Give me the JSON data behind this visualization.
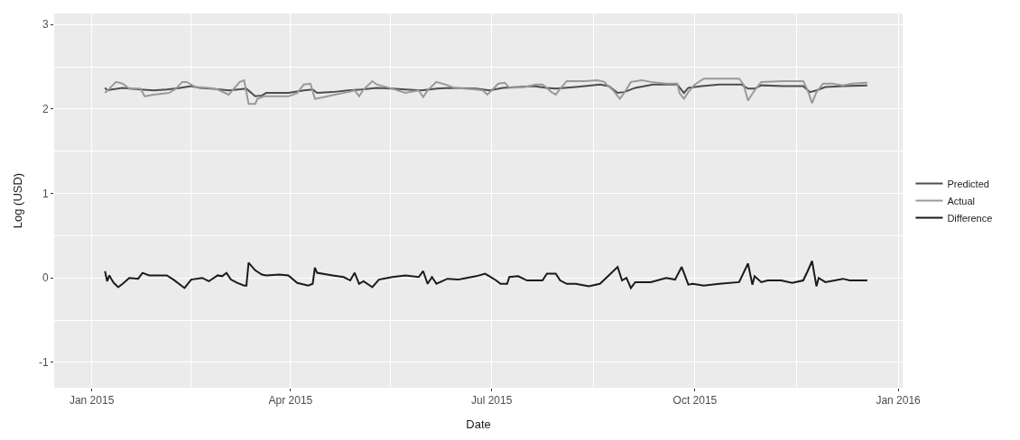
{
  "chart_data": {
    "type": "line",
    "xlabel": "Date",
    "ylabel": "Log (USD)",
    "xlim": [
      "2014-12-15",
      "2016-01-03"
    ],
    "ylim": [
      -1.3,
      3.13
    ],
    "xticks": [
      {
        "value": "2015-01-01",
        "label": "Jan 2015"
      },
      {
        "value": "2015-04-01",
        "label": "Apr 2015"
      },
      {
        "value": "2015-07-01",
        "label": "Jul 2015"
      },
      {
        "value": "2015-10-01",
        "label": "Oct 2015"
      },
      {
        "value": "2016-01-01",
        "label": "Jan 2016"
      }
    ],
    "yticks": [
      -1,
      0,
      1,
      2,
      3
    ],
    "grid": true,
    "legend": "right",
    "line_style": "solid",
    "marker": "none",
    "series": [
      {
        "name": "Predicted",
        "color": "#4d4d4d",
        "x": [
          "2015-01-07",
          "2015-01-08",
          "2015-01-10",
          "2015-01-15",
          "2015-01-23",
          "2015-01-29",
          "2015-02-04",
          "2015-02-10",
          "2015-02-15",
          "2015-02-19",
          "2015-02-24",
          "2015-03-04",
          "2015-03-12",
          "2015-03-16",
          "2015-03-19",
          "2015-03-21",
          "2015-03-31",
          "2015-04-07",
          "2015-04-11",
          "2015-04-13",
          "2015-04-20",
          "2015-04-27",
          "2015-05-03",
          "2015-05-10",
          "2015-05-17",
          "2015-05-23",
          "2015-05-30",
          "2015-06-03",
          "2015-06-06",
          "2015-06-12",
          "2015-06-24",
          "2015-06-27",
          "2015-06-30",
          "2015-07-06",
          "2015-07-20",
          "2015-07-26",
          "2015-07-30",
          "2015-08-08",
          "2015-08-19",
          "2015-08-23",
          "2015-08-27",
          "2015-08-30",
          "2015-09-04",
          "2015-09-12",
          "2015-09-23",
          "2015-09-26",
          "2015-09-28",
          "2015-10-04",
          "2015-10-12",
          "2015-10-22",
          "2015-10-25",
          "2015-10-28",
          "2015-10-31",
          "2015-11-10",
          "2015-11-19",
          "2015-11-22",
          "2015-11-25",
          "2015-11-29",
          "2015-12-07",
          "2015-12-18"
        ],
        "values": [
          2.25,
          2.22,
          2.23,
          2.25,
          2.23,
          2.22,
          2.23,
          2.25,
          2.27,
          2.25,
          2.24,
          2.22,
          2.24,
          2.15,
          2.16,
          2.19,
          2.19,
          2.22,
          2.23,
          2.19,
          2.2,
          2.22,
          2.23,
          2.25,
          2.24,
          2.23,
          2.22,
          2.23,
          2.24,
          2.25,
          2.24,
          2.23,
          2.22,
          2.25,
          2.27,
          2.25,
          2.24,
          2.26,
          2.29,
          2.27,
          2.19,
          2.2,
          2.25,
          2.29,
          2.29,
          2.19,
          2.25,
          2.27,
          2.29,
          2.29,
          2.24,
          2.24,
          2.28,
          2.27,
          2.27,
          2.2,
          2.22,
          2.26,
          2.27,
          2.28
        ]
      },
      {
        "name": "Actual",
        "color": "#999999",
        "x": [
          "2015-01-07",
          "2015-01-09",
          "2015-01-12",
          "2015-01-15",
          "2015-01-18",
          "2015-01-23",
          "2015-01-25",
          "2015-01-29",
          "2015-02-05",
          "2015-02-08",
          "2015-02-11",
          "2015-02-13",
          "2015-02-17",
          "2015-02-23",
          "2015-02-27",
          "2015-03-04",
          "2015-03-09",
          "2015-03-11",
          "2015-03-13",
          "2015-03-16",
          "2015-03-17",
          "2015-03-20",
          "2015-03-25",
          "2015-03-31",
          "2015-04-04",
          "2015-04-07",
          "2015-04-10",
          "2015-04-12",
          "2015-04-16",
          "2015-04-21",
          "2015-04-27",
          "2015-04-30",
          "2015-05-02",
          "2015-05-04",
          "2015-05-08",
          "2015-05-10",
          "2015-05-17",
          "2015-05-23",
          "2015-05-29",
          "2015-05-31",
          "2015-06-02",
          "2015-06-06",
          "2015-06-10",
          "2015-06-14",
          "2015-06-24",
          "2015-06-27",
          "2015-06-29",
          "2015-07-01",
          "2015-07-04",
          "2015-07-07",
          "2015-07-09",
          "2015-07-16",
          "2015-07-21",
          "2015-07-24",
          "2015-07-26",
          "2015-07-28",
          "2015-07-30",
          "2015-08-01",
          "2015-08-04",
          "2015-08-12",
          "2015-08-18",
          "2015-08-21",
          "2015-08-22",
          "2015-08-25",
          "2015-08-28",
          "2015-08-30",
          "2015-09-02",
          "2015-09-07",
          "2015-09-11",
          "2015-09-18",
          "2015-09-23",
          "2015-09-24",
          "2015-09-26",
          "2015-09-28",
          "2015-10-01",
          "2015-10-05",
          "2015-10-14",
          "2015-10-21",
          "2015-10-23",
          "2015-10-25",
          "2015-10-28",
          "2015-10-31",
          "2015-11-10",
          "2015-11-19",
          "2015-11-21",
          "2015-11-23",
          "2015-11-25",
          "2015-11-28",
          "2015-12-02",
          "2015-12-07",
          "2015-12-11",
          "2015-12-18"
        ],
        "values": [
          2.19,
          2.24,
          2.32,
          2.3,
          2.24,
          2.24,
          2.15,
          2.17,
          2.19,
          2.24,
          2.32,
          2.32,
          2.26,
          2.25,
          2.23,
          2.17,
          2.32,
          2.34,
          2.06,
          2.06,
          2.12,
          2.15,
          2.15,
          2.15,
          2.19,
          2.29,
          2.3,
          2.12,
          2.14,
          2.17,
          2.2,
          2.22,
          2.15,
          2.23,
          2.33,
          2.29,
          2.24,
          2.19,
          2.22,
          2.14,
          2.22,
          2.32,
          2.29,
          2.25,
          2.23,
          2.22,
          2.17,
          2.22,
          2.3,
          2.31,
          2.25,
          2.26,
          2.29,
          2.29,
          2.25,
          2.2,
          2.17,
          2.24,
          2.33,
          2.33,
          2.34,
          2.32,
          2.29,
          2.22,
          2.12,
          2.19,
          2.32,
          2.34,
          2.32,
          2.3,
          2.3,
          2.19,
          2.12,
          2.2,
          2.29,
          2.36,
          2.36,
          2.36,
          2.29,
          2.1,
          2.22,
          2.32,
          2.33,
          2.33,
          2.22,
          2.07,
          2.2,
          2.3,
          2.3,
          2.28,
          2.3,
          2.31
        ]
      },
      {
        "name": "Difference",
        "color": "#1a1a1a",
        "x": [
          "2015-01-07",
          "2015-01-08",
          "2015-01-09",
          "2015-01-10",
          "2015-01-11",
          "2015-01-13",
          "2015-01-15",
          "2015-01-18",
          "2015-01-22",
          "2015-01-24",
          "2015-01-27",
          "2015-02-04",
          "2015-02-07",
          "2015-02-12",
          "2015-02-15",
          "2015-02-20",
          "2015-02-23",
          "2015-02-27",
          "2015-03-01",
          "2015-03-03",
          "2015-03-05",
          "2015-03-08",
          "2015-03-11",
          "2015-03-12",
          "2015-03-13",
          "2015-03-16",
          "2015-03-19",
          "2015-03-21",
          "2015-03-27",
          "2015-03-31",
          "2015-04-04",
          "2015-04-09",
          "2015-04-11",
          "2015-04-12",
          "2015-04-13",
          "2015-04-20",
          "2015-04-25",
          "2015-04-28",
          "2015-04-30",
          "2015-05-02",
          "2015-05-04",
          "2015-05-08",
          "2015-05-11",
          "2015-05-17",
          "2015-05-23",
          "2015-05-29",
          "2015-05-31",
          "2015-06-02",
          "2015-06-04",
          "2015-06-06",
          "2015-06-11",
          "2015-06-16",
          "2015-06-24",
          "2015-06-28",
          "2015-06-30",
          "2015-07-03",
          "2015-07-05",
          "2015-07-08",
          "2015-07-09",
          "2015-07-13",
          "2015-07-17",
          "2015-07-24",
          "2015-07-26",
          "2015-07-30",
          "2015-08-01",
          "2015-08-04",
          "2015-08-08",
          "2015-08-14",
          "2015-08-19",
          "2015-08-23",
          "2015-08-27",
          "2015-08-29",
          "2015-08-31",
          "2015-09-02",
          "2015-09-04",
          "2015-09-11",
          "2015-09-18",
          "2015-09-22",
          "2015-09-25",
          "2015-09-28",
          "2015-09-30",
          "2015-10-05",
          "2015-10-12",
          "2015-10-21",
          "2015-10-25",
          "2015-10-27",
          "2015-10-28",
          "2015-10-31",
          "2015-11-03",
          "2015-11-09",
          "2015-11-14",
          "2015-11-19",
          "2015-11-21",
          "2015-11-23",
          "2015-11-25",
          "2015-11-26",
          "2015-11-29",
          "2015-12-07",
          "2015-12-10",
          "2015-12-18"
        ],
        "values": [
          0.08,
          -0.04,
          0.03,
          -0.02,
          -0.06,
          -0.11,
          -0.07,
          0.0,
          -0.01,
          0.06,
          0.03,
          0.03,
          -0.02,
          -0.12,
          -0.02,
          0.0,
          -0.04,
          0.03,
          0.02,
          0.06,
          -0.02,
          -0.06,
          -0.09,
          -0.09,
          0.18,
          0.09,
          0.04,
          0.03,
          0.04,
          0.03,
          -0.06,
          -0.09,
          -0.07,
          0.12,
          0.06,
          0.03,
          0.01,
          -0.03,
          0.06,
          -0.07,
          -0.04,
          -0.11,
          -0.02,
          0.01,
          0.03,
          0.01,
          0.08,
          -0.07,
          0.01,
          -0.07,
          -0.01,
          -0.02,
          0.02,
          0.05,
          0.02,
          -0.03,
          -0.07,
          -0.07,
          0.01,
          0.02,
          -0.03,
          -0.03,
          0.05,
          0.05,
          -0.03,
          -0.07,
          -0.07,
          -0.1,
          -0.07,
          0.03,
          0.13,
          -0.03,
          0.0,
          -0.12,
          -0.05,
          -0.05,
          0.0,
          -0.02,
          0.13,
          -0.08,
          -0.07,
          -0.09,
          -0.07,
          -0.05,
          0.17,
          -0.08,
          0.02,
          -0.05,
          -0.03,
          -0.03,
          -0.06,
          -0.03,
          0.08,
          0.2,
          -0.1,
          0.0,
          -0.05,
          -0.01,
          -0.03,
          -0.03
        ]
      }
    ]
  }
}
